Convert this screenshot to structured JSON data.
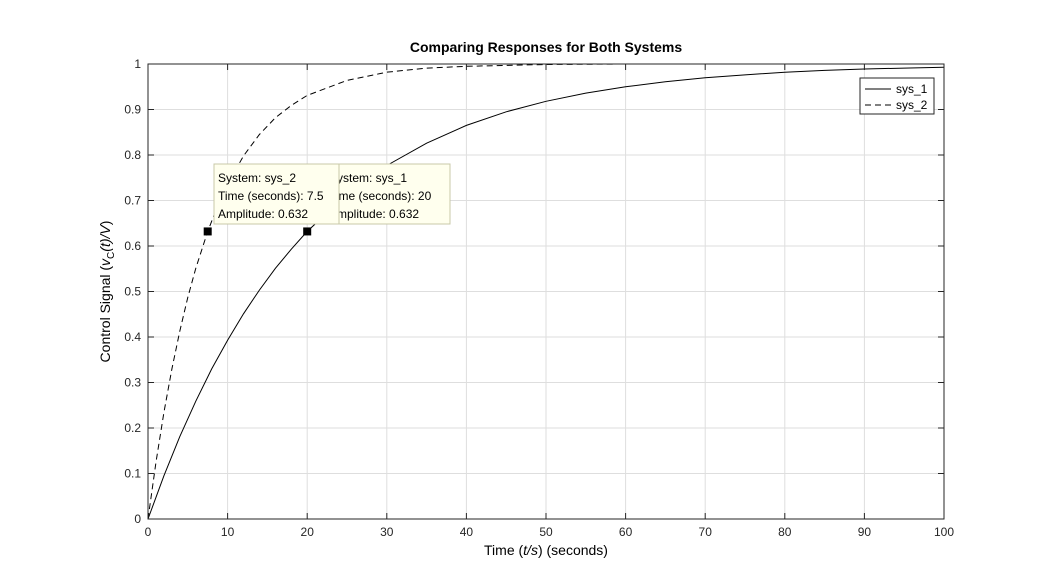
{
  "chart_data": {
    "type": "line",
    "title": "Comparing Responses for Both Systems",
    "xlabel": {
      "prefix": "Time (",
      "italic": "t/s",
      "suffix": ") (seconds)"
    },
    "ylabel": {
      "prefix": "Control Signal (",
      "italic_v": "v",
      "sub": "C",
      "italic_t": "(t)/V",
      "suffix": ")"
    },
    "xlim": [
      0,
      100
    ],
    "ylim": [
      0,
      1
    ],
    "xticks": [
      0,
      10,
      20,
      30,
      40,
      50,
      60,
      70,
      80,
      90,
      100
    ],
    "yticks": [
      0,
      0.1,
      0.2,
      0.3,
      0.4,
      0.5,
      0.6,
      0.7,
      0.8,
      0.9,
      1
    ],
    "grid": true,
    "legend_position": "top-right",
    "reference_line": 1,
    "series": [
      {
        "name": "sys_1",
        "style": "solid",
        "x": [
          0,
          2,
          4,
          6,
          8,
          10,
          12,
          14,
          16,
          18,
          20,
          25,
          30,
          35,
          40,
          45,
          50,
          55,
          60,
          65,
          70,
          75,
          80,
          85,
          90,
          95,
          100
        ],
        "y": [
          0,
          0.095,
          0.181,
          0.259,
          0.33,
          0.393,
          0.451,
          0.503,
          0.551,
          0.593,
          0.632,
          0.713,
          0.777,
          0.826,
          0.865,
          0.895,
          0.918,
          0.936,
          0.95,
          0.961,
          0.97,
          0.976,
          0.982,
          0.986,
          0.989,
          0.991,
          0.993
        ]
      },
      {
        "name": "sys_2",
        "style": "dashed",
        "x": [
          0,
          1,
          2,
          3,
          4,
          5,
          6,
          7.5,
          9,
          10,
          12,
          14,
          16,
          18,
          20,
          25,
          30,
          35,
          40,
          50,
          60,
          70,
          80,
          90,
          100
        ],
        "y": [
          0,
          0.125,
          0.234,
          0.33,
          0.413,
          0.487,
          0.551,
          0.632,
          0.699,
          0.736,
          0.798,
          0.845,
          0.882,
          0.909,
          0.931,
          0.964,
          0.982,
          0.991,
          0.995,
          0.999,
          1.0,
          1.0,
          1.0,
          1.0,
          1.0
        ]
      }
    ],
    "datatips": [
      {
        "system": "System: sys_2",
        "time": "Time (seconds): 7.5",
        "amplitude": "Amplitude: 0.632",
        "x": 7.5,
        "y": 0.632
      },
      {
        "system": "System: sys_1",
        "time": "Time (seconds): 20",
        "amplitude": "Amplitude: 0.632",
        "x": 20,
        "y": 0.632
      }
    ]
  },
  "colors": {
    "grid": "#dedede",
    "axis": "#262626",
    "line": "#000000",
    "tip_bg": "#ffffee",
    "tip_border": "#c8c8a8"
  }
}
